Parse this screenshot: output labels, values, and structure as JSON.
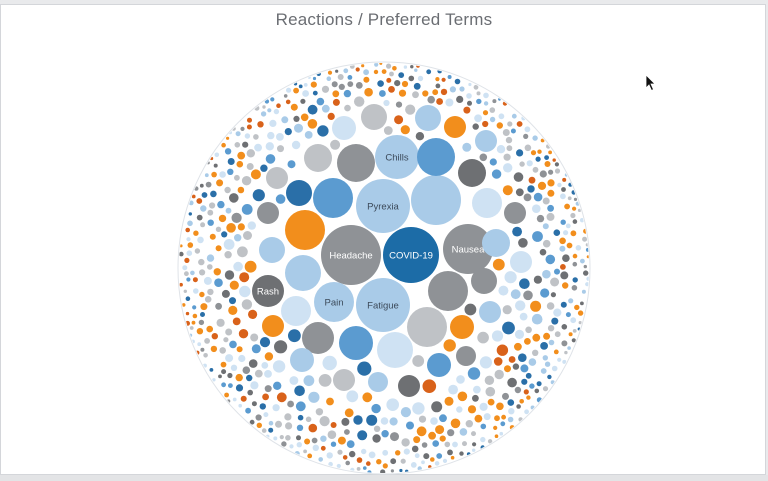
{
  "page": {
    "title": "Reactions / Preferred Terms"
  },
  "palette": {
    "dark_blue": "#2a6fa8",
    "mid_blue": "#5b9bd0",
    "light_blue": "#a9cbe8",
    "pale_blue": "#cfe2f3",
    "dark_gray": "#6e7073",
    "mid_gray": "#8f9296",
    "light_gray": "#bfc2c6",
    "orange": "#f28e1c",
    "dark_orange": "#d9621a",
    "covid_blue": "#1c6ca7"
  },
  "chart_data": {
    "type": "packed-bubble",
    "title": "Reactions / Preferred Terms",
    "labeled_bubbles": [
      {
        "label": "COVID-19",
        "color": "#1c6ca7"
      },
      {
        "label": "Headache",
        "color": "#8f9296"
      },
      {
        "label": "Pyrexia",
        "color": "#a9cbe8"
      },
      {
        "label": "Nausea",
        "color": "#8f9296"
      },
      {
        "label": "Fatigue",
        "color": "#a9cbe8"
      },
      {
        "label": "Chills",
        "color": "#a9cbe8"
      },
      {
        "label": "Pain",
        "color": "#a9cbe8"
      },
      {
        "label": "Rash",
        "color": "#6e7073"
      }
    ]
  }
}
